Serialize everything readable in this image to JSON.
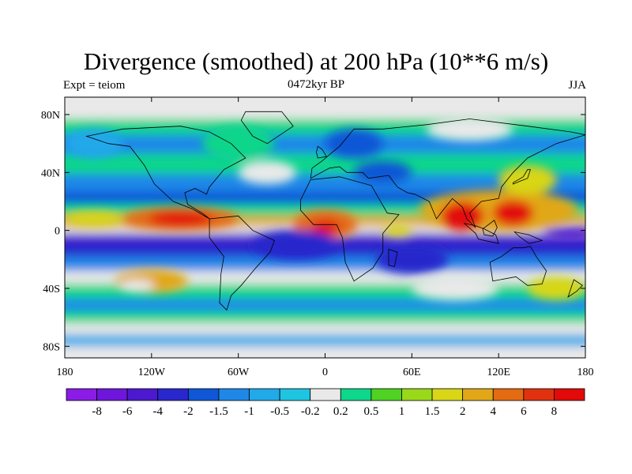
{
  "title": "Divergence (smoothed) at 200 hPa (10**6 m/s)",
  "subtitle_left": "Expt = teiom",
  "subtitle_center": "0472kyr BP",
  "subtitle_right": "JJA",
  "axes": {
    "lat_ticks": [
      "80N",
      "40N",
      "0",
      "40S",
      "80S"
    ],
    "lon_ticks": [
      "180",
      "120W",
      "60W",
      "0",
      "60E",
      "120E",
      "180"
    ]
  },
  "colorbar": {
    "colors": [
      "#8a1ce6",
      "#6f16dc",
      "#4c19cf",
      "#2828cc",
      "#0f57d6",
      "#1f87e8",
      "#21a9ea",
      "#1ec4e0",
      "#e9e9e9",
      "#0ed68a",
      "#4fd222",
      "#9ad81a",
      "#d8d616",
      "#e1a719",
      "#e36b12",
      "#e0320f",
      "#e20a0a"
    ],
    "labels": [
      "-8",
      "-6",
      "-4",
      "-2",
      "-1.5",
      "-1",
      "-0.5",
      "-0.2",
      "0.2",
      "0.5",
      "1",
      "1.5",
      "2",
      "4",
      "6",
      "8"
    ]
  },
  "field": {
    "zonal_bands": [
      {
        "lat": 82,
        "color": "#e9e9e9"
      },
      {
        "lat": 72,
        "color": "#0ed68a"
      },
      {
        "lat": 60,
        "color": "#1f87e8"
      },
      {
        "lat": 46,
        "color": "#0ed68a"
      },
      {
        "lat": 32,
        "color": "#1f87e8"
      },
      {
        "lat": 22,
        "color": "#0f57d6"
      },
      {
        "lat": 14,
        "color": "#0ed68a"
      },
      {
        "lat": 6,
        "color": "#e1a719"
      },
      {
        "lat": 0,
        "color": "#e9e9e9"
      },
      {
        "lat": -4,
        "color": "#4c19cf"
      },
      {
        "lat": -12,
        "color": "#2828cc"
      },
      {
        "lat": -24,
        "color": "#1f87e8"
      },
      {
        "lat": -32,
        "color": "#e9e9e9"
      },
      {
        "lat": -42,
        "color": "#0ed68a"
      },
      {
        "lat": -52,
        "color": "#1f87e8"
      },
      {
        "lat": -60,
        "color": "#0ed68a"
      },
      {
        "lat": -68,
        "color": "#e9e9e9"
      },
      {
        "lat": -76,
        "color": "#21a9ea"
      },
      {
        "lat": -84,
        "color": "#e9e9e9"
      }
    ],
    "blobs": [
      {
        "lon": -100,
        "lat": 8,
        "rlon": 40,
        "rlat": 8,
        "color": "#e36b12"
      },
      {
        "lon": -100,
        "lat": 8,
        "rlon": 22,
        "rlat": 5,
        "color": "#e20a0a"
      },
      {
        "lon": -160,
        "lat": 8,
        "rlon": 20,
        "rlat": 5,
        "color": "#d8d616"
      },
      {
        "lon": 0,
        "lat": 4,
        "rlon": 22,
        "rlat": 10,
        "color": "#e36b12"
      },
      {
        "lon": 0,
        "lat": 2,
        "rlon": 10,
        "rlat": 5,
        "color": "#e20a0a"
      },
      {
        "lon": 120,
        "lat": 14,
        "rlon": 55,
        "rlat": 14,
        "color": "#e1a719"
      },
      {
        "lon": 95,
        "lat": 10,
        "rlon": 15,
        "rlat": 10,
        "color": "#e20a0a"
      },
      {
        "lon": 130,
        "lat": 12,
        "rlon": 14,
        "rlat": 9,
        "color": "#e20a0a"
      },
      {
        "lon": 140,
        "lat": 35,
        "rlon": 20,
        "rlat": 10,
        "color": "#d8d616"
      },
      {
        "lon": 50,
        "lat": 0,
        "rlon": 10,
        "rlat": 4,
        "color": "#d8d616"
      },
      {
        "lon": -20,
        "lat": -10,
        "rlon": 30,
        "rlat": 10,
        "color": "#2828cc"
      },
      {
        "lon": 60,
        "lat": -20,
        "rlon": 25,
        "rlat": 10,
        "color": "#2828cc"
      },
      {
        "lon": 170,
        "lat": -2,
        "rlon": 20,
        "rlat": 4,
        "color": "#4c19cf"
      },
      {
        "lon": -120,
        "lat": -35,
        "rlon": 25,
        "rlat": 8,
        "color": "#e1a719"
      },
      {
        "lon": -130,
        "lat": -38,
        "rlon": 12,
        "rlat": 4,
        "color": "#e9e9e9"
      },
      {
        "lon": 90,
        "lat": -40,
        "rlon": 30,
        "rlat": 8,
        "color": "#e9e9e9"
      },
      {
        "lon": 160,
        "lat": -40,
        "rlon": 20,
        "rlat": 8,
        "color": "#d8d616"
      },
      {
        "lon": -60,
        "lat": 60,
        "rlon": 25,
        "rlat": 12,
        "color": "#0ed68a"
      },
      {
        "lon": 20,
        "lat": 60,
        "rlon": 20,
        "rlat": 10,
        "color": "#0f57d6"
      },
      {
        "lon": 100,
        "lat": 70,
        "rlon": 30,
        "rlat": 8,
        "color": "#e9e9e9"
      },
      {
        "lon": -160,
        "lat": 60,
        "rlon": 20,
        "rlat": 10,
        "color": "#21a9ea"
      },
      {
        "lon": 40,
        "lat": 40,
        "rlon": 20,
        "rlat": 8,
        "color": "#0f57d6"
      },
      {
        "lon": -40,
        "lat": 40,
        "rlon": 20,
        "rlat": 8,
        "color": "#e9e9e9"
      }
    ],
    "continents": [
      {
        "name": "north-america",
        "points": [
          [
            -165,
            65
          ],
          [
            -140,
            70
          ],
          [
            -100,
            72
          ],
          [
            -80,
            68
          ],
          [
            -65,
            60
          ],
          [
            -55,
            50
          ],
          [
            -70,
            42
          ],
          [
            -80,
            30
          ],
          [
            -82,
            25
          ],
          [
            -90,
            29
          ],
          [
            -97,
            26
          ],
          [
            -95,
            18
          ],
          [
            -85,
            12
          ],
          [
            -80,
            8
          ],
          [
            -92,
            15
          ],
          [
            -105,
            20
          ],
          [
            -118,
            32
          ],
          [
            -125,
            45
          ],
          [
            -135,
            58
          ],
          [
            -150,
            60
          ],
          [
            -165,
            65
          ]
        ]
      },
      {
        "name": "greenland",
        "points": [
          [
            -55,
            82
          ],
          [
            -30,
            82
          ],
          [
            -22,
            72
          ],
          [
            -40,
            60
          ],
          [
            -50,
            65
          ],
          [
            -58,
            76
          ],
          [
            -55,
            82
          ]
        ]
      },
      {
        "name": "south-america",
        "points": [
          [
            -80,
            8
          ],
          [
            -60,
            10
          ],
          [
            -50,
            0
          ],
          [
            -35,
            -7
          ],
          [
            -38,
            -15
          ],
          [
            -48,
            -26
          ],
          [
            -58,
            -38
          ],
          [
            -65,
            -45
          ],
          [
            -68,
            -55
          ],
          [
            -73,
            -50
          ],
          [
            -72,
            -30
          ],
          [
            -70,
            -18
          ],
          [
            -80,
            -5
          ],
          [
            -80,
            8
          ]
        ]
      },
      {
        "name": "africa",
        "points": [
          [
            -17,
            21
          ],
          [
            -10,
            35
          ],
          [
            10,
            37
          ],
          [
            32,
            31
          ],
          [
            43,
            12
          ],
          [
            51,
            11
          ],
          [
            40,
            -2
          ],
          [
            40,
            -15
          ],
          [
            33,
            -26
          ],
          [
            20,
            -35
          ],
          [
            14,
            -22
          ],
          [
            12,
            -5
          ],
          [
            8,
            4
          ],
          [
            -8,
            4
          ],
          [
            -17,
            14
          ],
          [
            -17,
            21
          ]
        ]
      },
      {
        "name": "eurasia",
        "points": [
          [
            -10,
            36
          ],
          [
            -9,
            43
          ],
          [
            -2,
            48
          ],
          [
            5,
            54
          ],
          [
            10,
            58
          ],
          [
            20,
            70
          ],
          [
            40,
            70
          ],
          [
            70,
            73
          ],
          [
            100,
            77
          ],
          [
            140,
            72
          ],
          [
            170,
            68
          ],
          [
            180,
            66
          ],
          [
            160,
            60
          ],
          [
            140,
            50
          ],
          [
            130,
            40
          ],
          [
            122,
            30
          ],
          [
            120,
            22
          ],
          [
            108,
            20
          ],
          [
            100,
            12
          ],
          [
            104,
            2
          ],
          [
            98,
            8
          ],
          [
            95,
            16
          ],
          [
            88,
            22
          ],
          [
            80,
            12
          ],
          [
            77,
            8
          ],
          [
            72,
            20
          ],
          [
            62,
            25
          ],
          [
            57,
            26
          ],
          [
            50,
            30
          ],
          [
            44,
            38
          ],
          [
            30,
            36
          ],
          [
            26,
            40
          ],
          [
            15,
            40
          ],
          [
            10,
            44
          ],
          [
            3,
            43
          ],
          [
            -10,
            36
          ]
        ]
      },
      {
        "name": "australia",
        "points": [
          [
            114,
            -22
          ],
          [
            122,
            -18
          ],
          [
            130,
            -12
          ],
          [
            137,
            -12
          ],
          [
            142,
            -11
          ],
          [
            146,
            -18
          ],
          [
            153,
            -28
          ],
          [
            150,
            -37
          ],
          [
            140,
            -38
          ],
          [
            132,
            -32
          ],
          [
            116,
            -35
          ],
          [
            114,
            -22
          ]
        ]
      },
      {
        "name": "indonesia",
        "points": [
          [
            96,
            5
          ],
          [
            104,
            -2
          ],
          [
            106,
            -6
          ],
          [
            115,
            -8
          ],
          [
            120,
            -9
          ],
          [
            118,
            -3
          ],
          [
            110,
            1
          ],
          [
            105,
            3
          ],
          [
            96,
            5
          ]
        ]
      },
      {
        "name": "borneo",
        "points": [
          [
            109,
            1
          ],
          [
            117,
            7
          ],
          [
            119,
            2
          ],
          [
            116,
            -4
          ],
          [
            110,
            -3
          ],
          [
            109,
            1
          ]
        ]
      },
      {
        "name": "new-guinea",
        "points": [
          [
            131,
            -1
          ],
          [
            141,
            -3
          ],
          [
            150,
            -7
          ],
          [
            141,
            -9
          ],
          [
            134,
            -4
          ],
          [
            131,
            -1
          ]
        ]
      },
      {
        "name": "madagascar",
        "points": [
          [
            44,
            -13
          ],
          [
            50,
            -15
          ],
          [
            48,
            -25
          ],
          [
            44,
            -24
          ],
          [
            44,
            -13
          ]
        ]
      },
      {
        "name": "japan",
        "points": [
          [
            130,
            32
          ],
          [
            135,
            34
          ],
          [
            140,
            36
          ],
          [
            142,
            42
          ],
          [
            140,
            42
          ],
          [
            137,
            37
          ],
          [
            130,
            33
          ],
          [
            130,
            32
          ]
        ]
      },
      {
        "name": "uk",
        "points": [
          [
            -5,
            50
          ],
          [
            1,
            51
          ],
          [
            -2,
            56
          ],
          [
            -5,
            58
          ],
          [
            -6,
            54
          ],
          [
            -5,
            50
          ]
        ]
      },
      {
        "name": "new-zealand",
        "points": [
          [
            172,
            -34
          ],
          [
            178,
            -38
          ],
          [
            174,
            -42
          ],
          [
            168,
            -46
          ],
          [
            172,
            -34
          ]
        ]
      }
    ]
  }
}
